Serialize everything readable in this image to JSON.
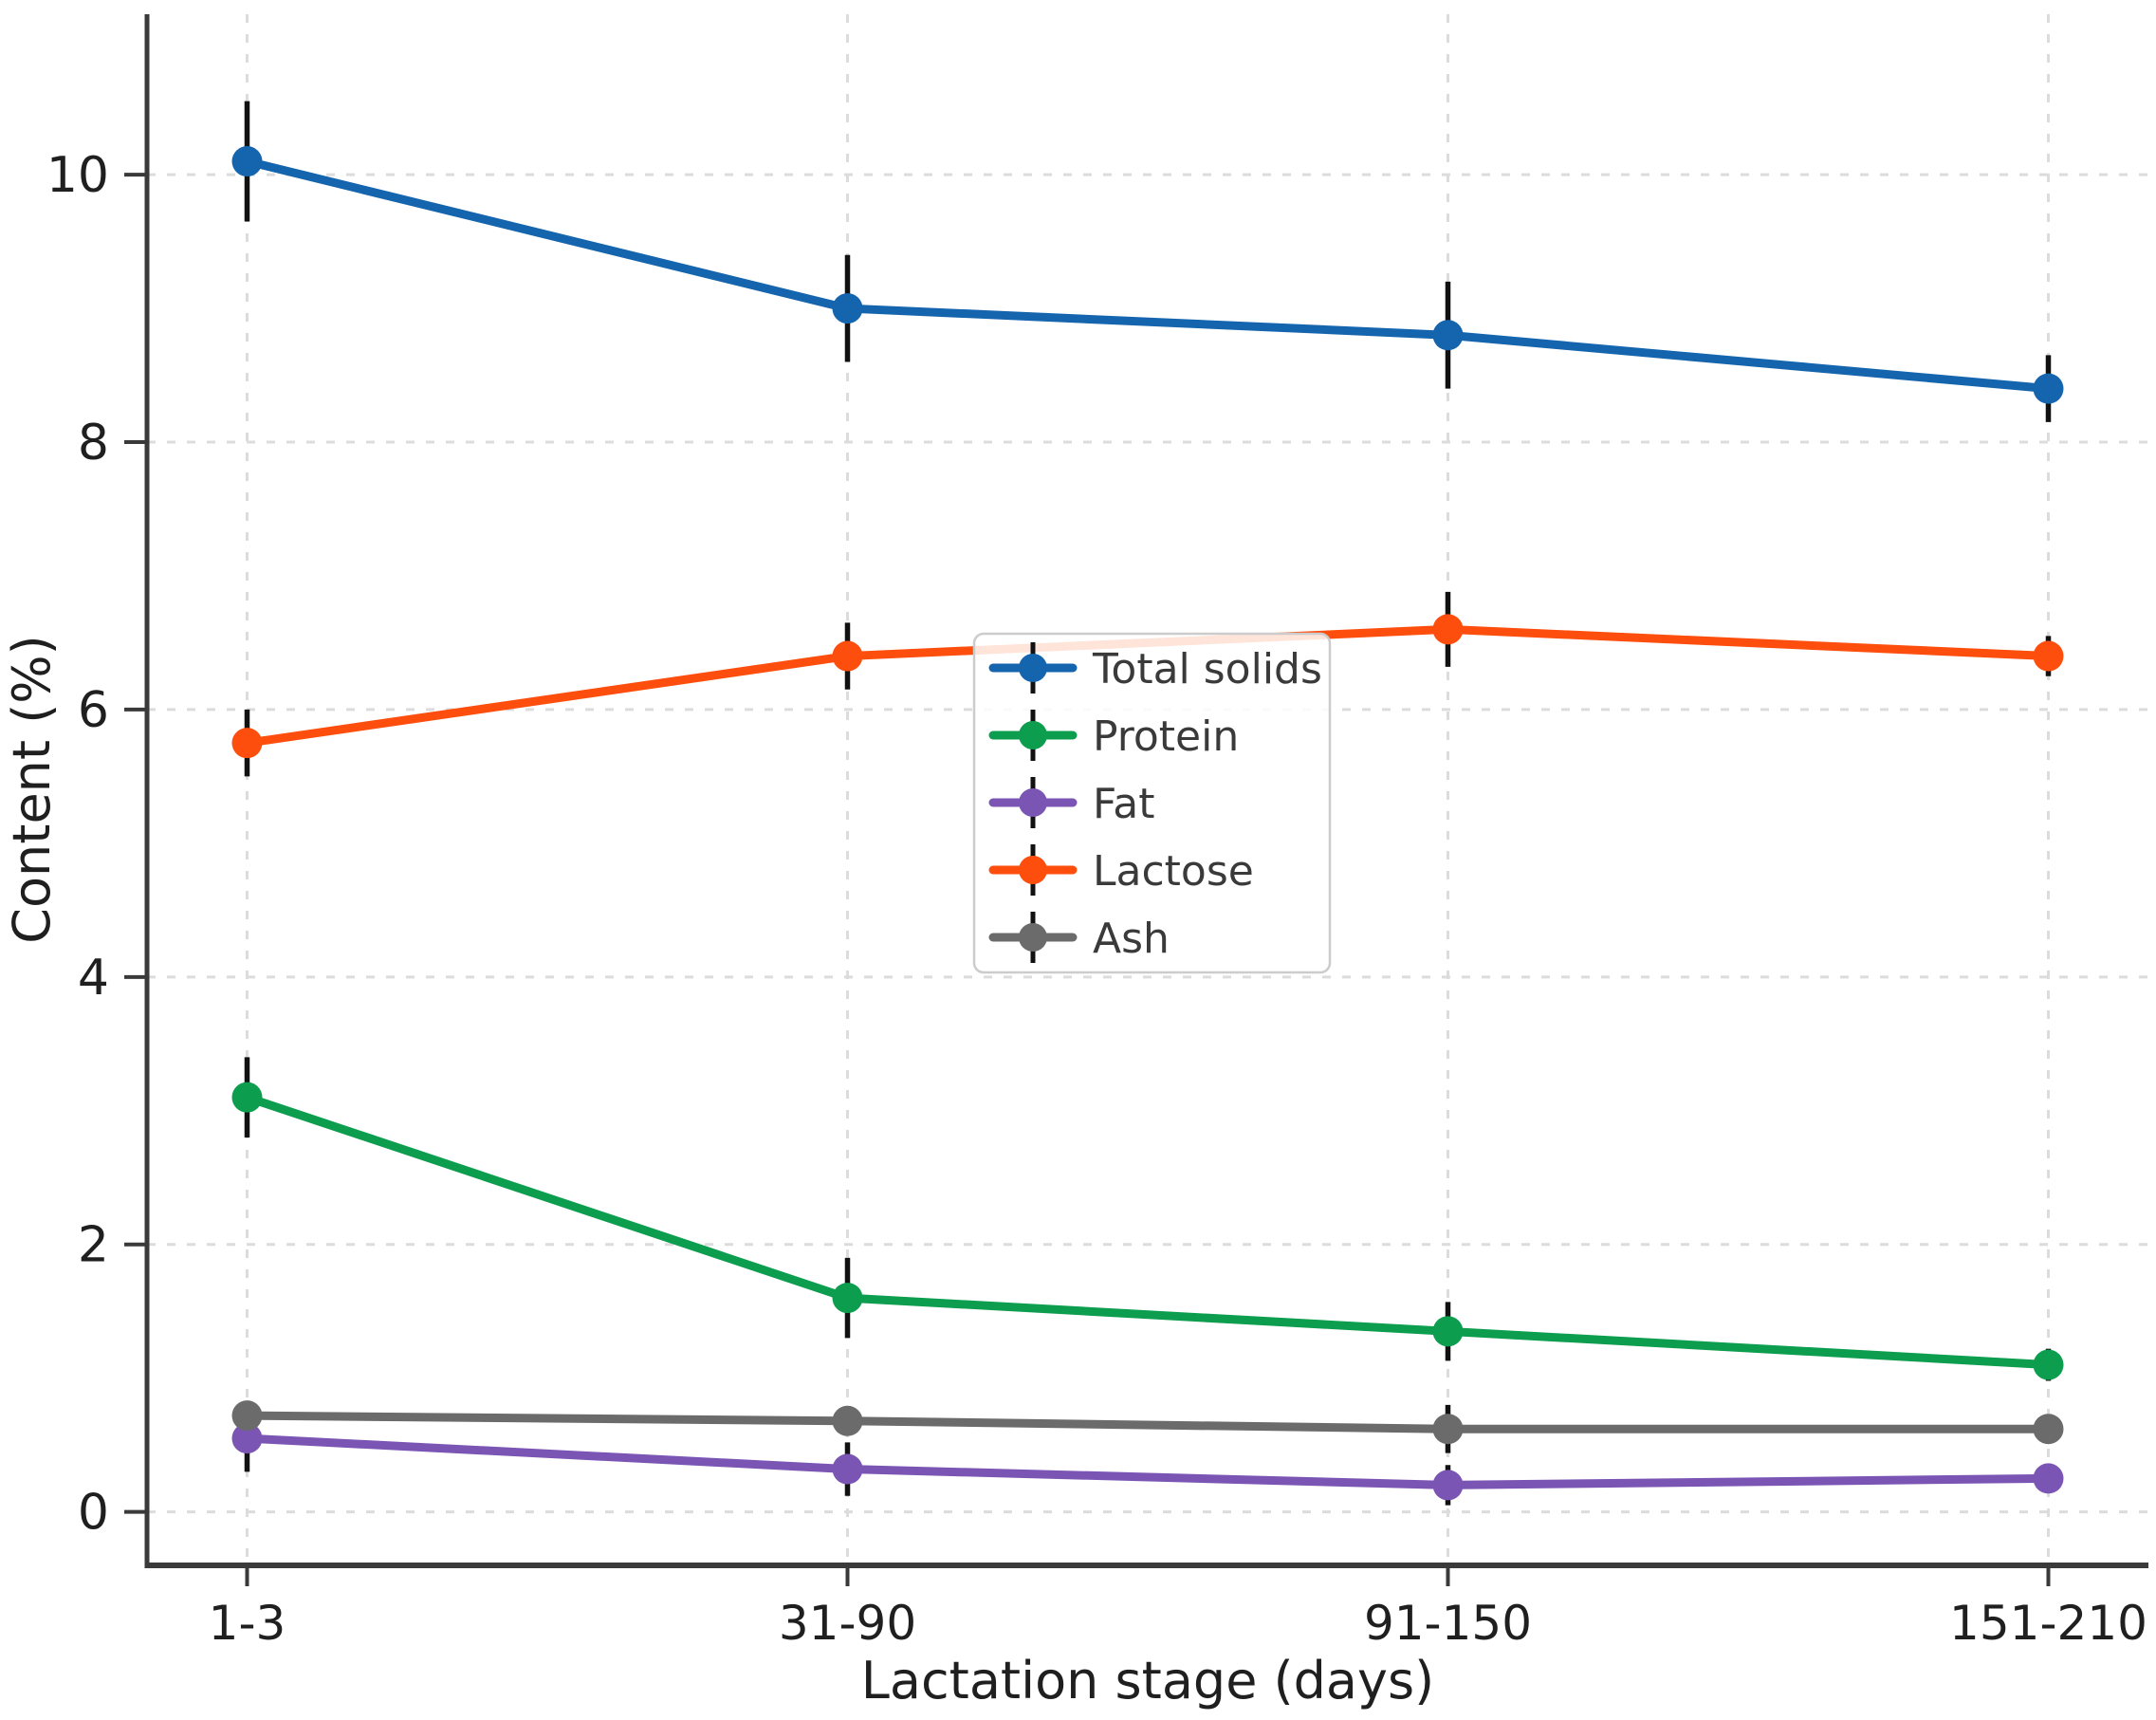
{
  "figure": {
    "background_color": "#ffffff",
    "spine_color": "#3a3a3a",
    "grid_color": "#dcdcdc",
    "tick_label_color": "#1f1f1f",
    "legend_text_color": "#3a3a3a",
    "legend_border_color": "#cccccc"
  },
  "chart_data": {
    "type": "line",
    "title": "",
    "xlabel": "Lactation stage (days)",
    "ylabel": "Content (%)",
    "categories": [
      "1-3",
      "31-90",
      "91-150",
      "151-210"
    ],
    "series": [
      {
        "name": "Total solids",
        "color": "#1565ae",
        "values": [
          10.1,
          9.0,
          8.8,
          8.4
        ],
        "errors": [
          0.45,
          0.4,
          0.4,
          0.25
        ]
      },
      {
        "name": "Protein",
        "color": "#0d9d4e",
        "values": [
          3.1,
          1.6,
          1.35,
          1.1
        ],
        "errors": [
          0.3,
          0.3,
          0.22,
          0.12
        ]
      },
      {
        "name": "Fat",
        "color": "#7b55b4",
        "values": [
          0.55,
          0.32,
          0.2,
          0.25
        ],
        "errors": [
          0.25,
          0.2,
          0.15,
          0.08
        ]
      },
      {
        "name": "Lactose",
        "color": "#fe4e0d",
        "values": [
          5.75,
          6.4,
          6.6,
          6.4
        ],
        "errors": [
          0.25,
          0.25,
          0.28,
          0.15
        ]
      },
      {
        "name": "Ash",
        "color": "#6b6b6b",
        "values": [
          0.72,
          0.68,
          0.62,
          0.62
        ],
        "errors": [
          0.1,
          0.08,
          0.18,
          0.06
        ]
      }
    ],
    "yticks": [
      0,
      2,
      4,
      6,
      8,
      10
    ],
    "ylim": [
      -0.4,
      11.2
    ],
    "grid": "dashed",
    "marker": "circle",
    "error_bar_color": "#111111",
    "legend_position": "center",
    "legend_entries": [
      "Total solids",
      "Protein",
      "Fat",
      "Lactose",
      "Ash"
    ]
  }
}
